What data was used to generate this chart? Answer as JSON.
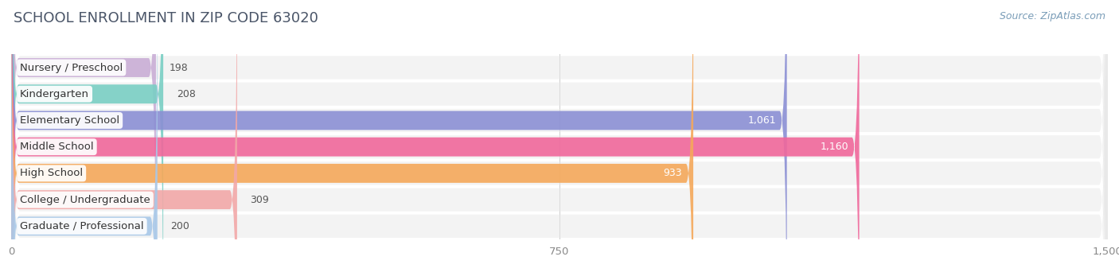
{
  "title": "SCHOOL ENROLLMENT IN ZIP CODE 63020",
  "source": "Source: ZipAtlas.com",
  "categories": [
    "Nursery / Preschool",
    "Kindergarten",
    "Elementary School",
    "Middle School",
    "High School",
    "College / Undergraduate",
    "Graduate / Professional"
  ],
  "values": [
    198,
    208,
    1061,
    1160,
    933,
    309,
    200
  ],
  "bar_colors": [
    "#c9aed6",
    "#79cfc4",
    "#8b8fd4",
    "#f0679b",
    "#f5a85a",
    "#f2a8a8",
    "#a8c8e8"
  ],
  "row_bg_color": "#e8e8e8",
  "xlim_max": 1500,
  "xticks": [
    0,
    750,
    1500
  ],
  "title_color": "#4a5568",
  "title_fontsize": 13,
  "label_fontsize": 9.5,
  "value_fontsize": 9,
  "source_fontsize": 9,
  "background_color": "#ffffff"
}
